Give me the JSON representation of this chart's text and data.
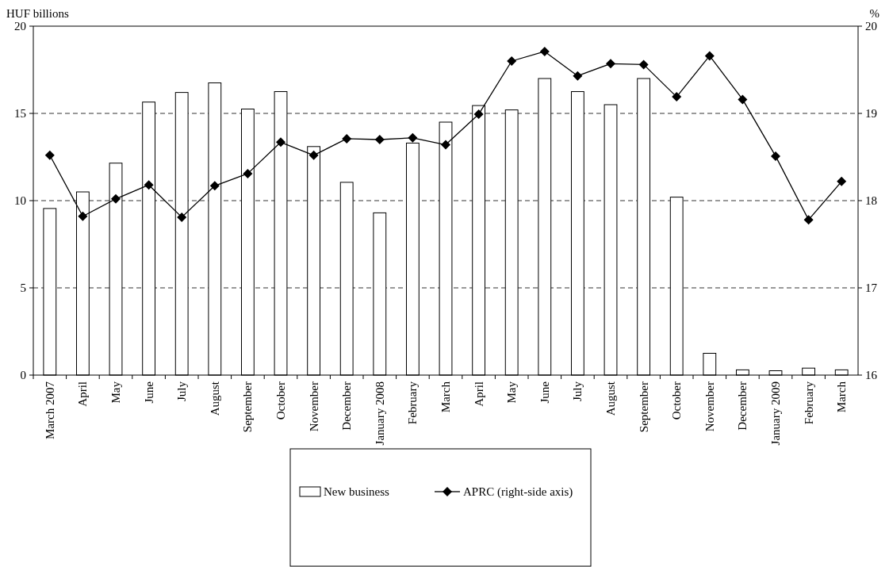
{
  "chart_data": {
    "type": "bar",
    "ylabel": "HUF billions",
    "y2label": "%",
    "categories": [
      "March 2007",
      "April",
      "May",
      "June",
      "July",
      "August",
      "September",
      "October",
      "November",
      "December",
      "January 2008",
      "February",
      "March",
      "April",
      "May",
      "June",
      "July",
      "August",
      "September",
      "October",
      "November",
      "December",
      "January 2009",
      "February",
      "March"
    ],
    "series": [
      {
        "name": "New business",
        "color": "#ffffff",
        "values": [
          9.55,
          10.5,
          12.15,
          15.65,
          16.2,
          16.75,
          15.25,
          16.25,
          13.1,
          11.05,
          9.3,
          13.3,
          14.5,
          15.45,
          15.2,
          17.0,
          16.25,
          15.5,
          17.0,
          10.2,
          1.25,
          0.3,
          0.25,
          0.4,
          0.3
        ]
      },
      {
        "name": "APRC (right-side axis)",
        "type": "line",
        "axis": "y2",
        "color": "#000000",
        "marker": "diamond",
        "values": [
          18.52,
          17.82,
          18.02,
          18.18,
          17.81,
          18.17,
          18.31,
          18.67,
          18.52,
          18.71,
          18.7,
          18.72,
          18.64,
          18.99,
          19.6,
          19.71,
          19.43,
          19.57,
          19.56,
          19.19,
          19.66,
          19.16,
          18.51,
          17.78,
          18.22
        ]
      }
    ],
    "ylim": [
      0,
      20
    ],
    "yticks": [
      0,
      5,
      10,
      15,
      20
    ],
    "y2lim": [
      16,
      20
    ],
    "y2ticks": [
      16,
      17,
      18,
      19,
      20
    ],
    "grid": "y",
    "legend": "bottom"
  }
}
